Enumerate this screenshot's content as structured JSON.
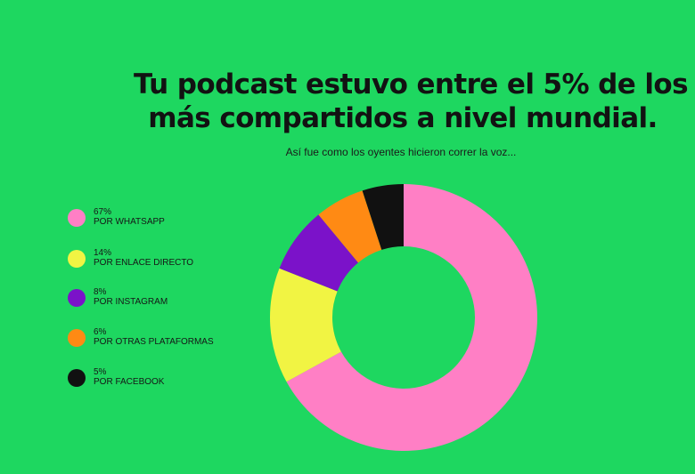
{
  "title_line1": "Tu podcast estuvo entre el 5% de los",
  "title_line2": "más compartidos a nivel mundial.",
  "subtitle": "Así fue como los oyentes hicieron correr la voz...",
  "chart_data": {
    "type": "pie",
    "categories": [
      "POR WHATSAPP",
      "POR ENLACE DIRECTO",
      "POR INSTAGRAM",
      "POR OTRAS PLATAFORMAS",
      "POR FACEBOOK"
    ],
    "values": [
      67,
      14,
      8,
      6,
      5
    ],
    "value_labels": [
      "67%",
      "14%",
      "8%",
      "6%",
      "5%"
    ],
    "colors": [
      "#ff7fc5",
      "#f1f443",
      "#7b12c9",
      "#ff8a14",
      "#111111"
    ],
    "legend_position": "left",
    "donut": true
  }
}
